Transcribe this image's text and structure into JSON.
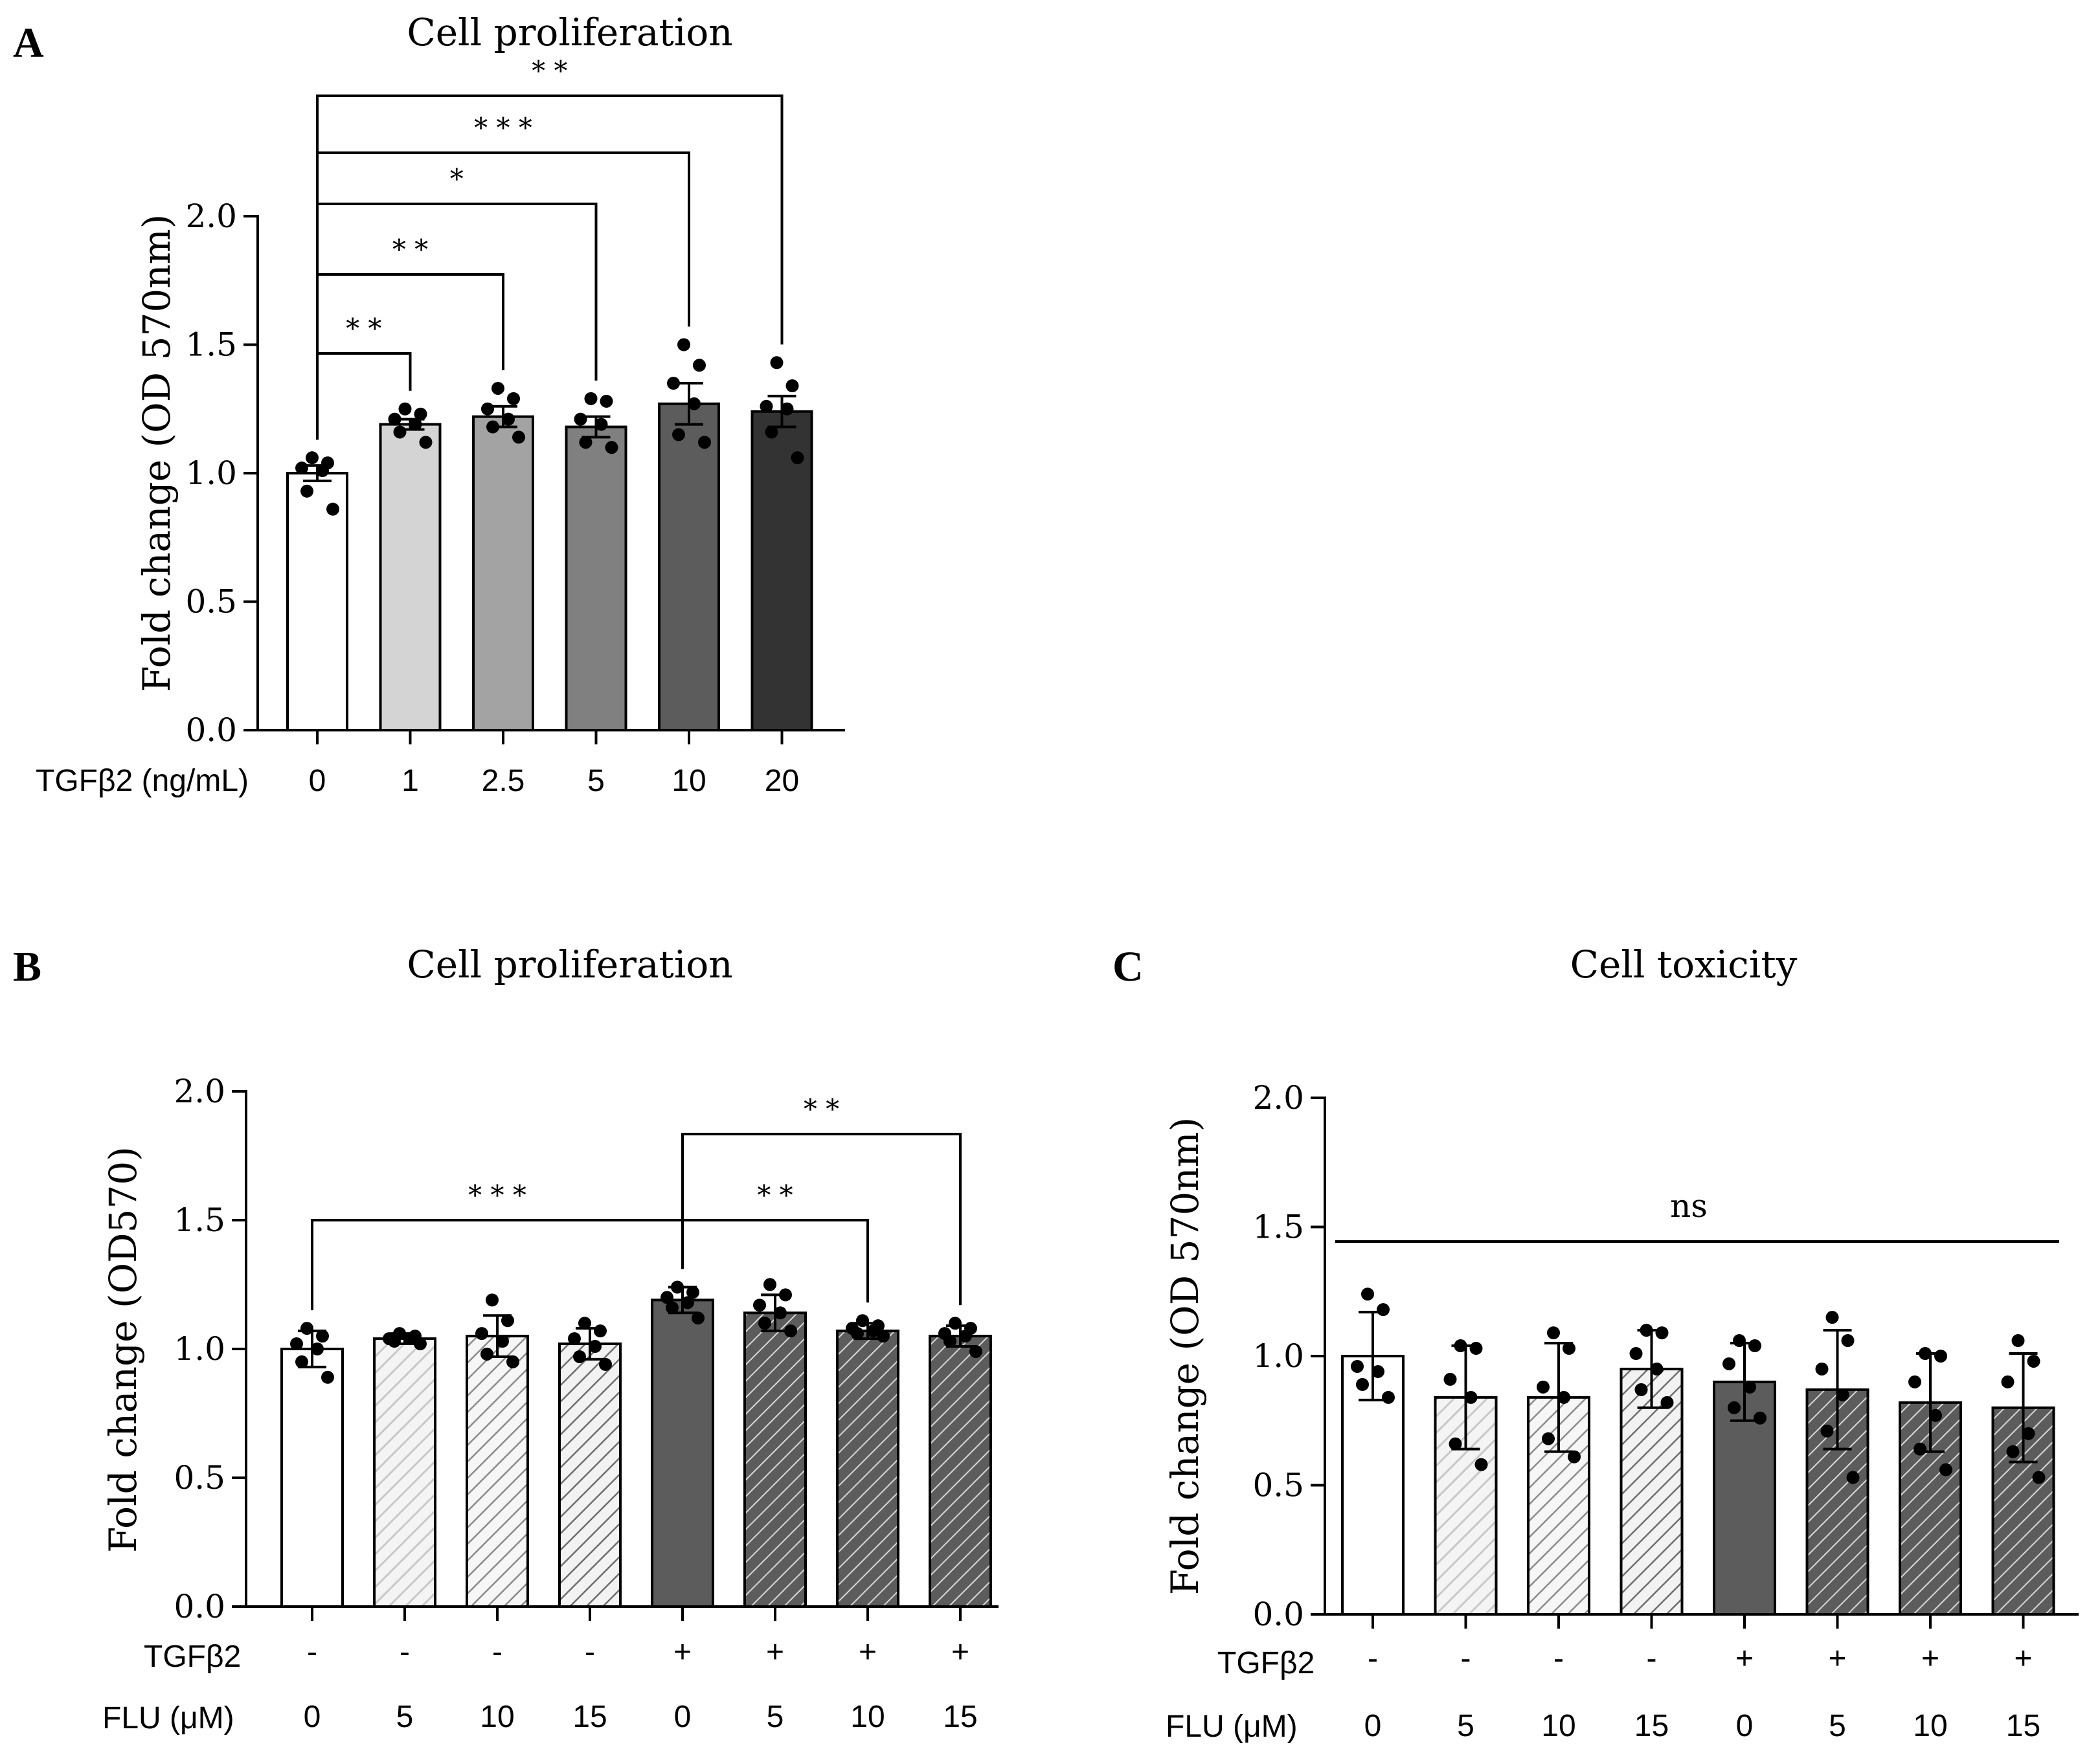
{
  "chart_data": [
    {
      "panel": "A",
      "type": "bar",
      "title": "Cell proliferation",
      "ylabel": "Fold change (OD 570nm)",
      "xlabel": "TGFβ2 (ng/mL)",
      "ylim": [
        0,
        2.0
      ],
      "yticks": [
        "0.0",
        "0.5",
        "1.0",
        "1.5",
        "2.0"
      ],
      "categories": [
        "0",
        "1",
        "2.5",
        "5",
        "10",
        "20"
      ],
      "values": [
        1.0,
        1.19,
        1.22,
        1.18,
        1.27,
        1.24
      ],
      "errors": [
        0.03,
        0.02,
        0.04,
        0.04,
        0.08,
        0.06
      ],
      "fills": [
        "#ffffff",
        "#d4d4d4",
        "#a3a3a3",
        "#808080",
        "#5c5c5c",
        "#333333"
      ],
      "points": [
        [
          1.06,
          1.04,
          1.02,
          1.01,
          0.93,
          0.86
        ],
        [
          1.25,
          1.23,
          1.21,
          1.19,
          1.16,
          1.12
        ],
        [
          1.33,
          1.29,
          1.25,
          1.21,
          1.18,
          1.14
        ],
        [
          1.29,
          1.28,
          1.21,
          1.19,
          1.12,
          1.1
        ],
        [
          1.5,
          1.42,
          1.35,
          1.27,
          1.15,
          1.12
        ],
        [
          1.43,
          1.34,
          1.26,
          1.25,
          1.16,
          1.06
        ]
      ],
      "comparisons": [
        {
          "from": 0,
          "to": 5,
          "label": "* *"
        },
        {
          "from": 0,
          "to": 4,
          "label": "* * *"
        },
        {
          "from": 0,
          "to": 3,
          "label": "*"
        },
        {
          "from": 0,
          "to": 2,
          "label": "* *"
        },
        {
          "from": 0,
          "to": 1,
          "label": "* *"
        }
      ]
    },
    {
      "panel": "B",
      "type": "bar",
      "title": "Cell proliferation",
      "ylabel": "Fold change (OD570)",
      "ylim": [
        0,
        2.0
      ],
      "yticks": [
        "0.0",
        "0.5",
        "1.0",
        "1.5",
        "2.0"
      ],
      "row_labels": [
        "TGFβ2",
        "FLU (μM)"
      ],
      "tgf": [
        "-",
        "-",
        "-",
        "-",
        "+",
        "+",
        "+",
        "+"
      ],
      "flu": [
        "0",
        "5",
        "10",
        "15",
        "0",
        "5",
        "10",
        "15"
      ],
      "values": [
        1.0,
        1.04,
        1.05,
        1.02,
        1.19,
        1.14,
        1.07,
        1.05
      ],
      "errors": [
        0.07,
        0.02,
        0.08,
        0.06,
        0.05,
        0.07,
        0.03,
        0.04
      ],
      "fills": [
        "#ffffff",
        "#f0f0f0",
        "#dadada",
        "#c8c8c8",
        "#5c5c5c",
        "#5c5c5c",
        "#5c5c5c",
        "#5c5c5c"
      ],
      "hatched": [
        false,
        true,
        true,
        true,
        false,
        true,
        true,
        true
      ],
      "hatch_colors": [
        "",
        "#c8c8c8",
        "#8a8a8a",
        "#6e6e6e",
        "",
        "#d8d8d8",
        "#d8d8d8",
        "#d8d8d8"
      ],
      "points": [
        [
          1.08,
          1.05,
          1.02,
          1.0,
          0.95,
          0.89
        ],
        [
          1.06,
          1.05,
          1.04,
          1.04,
          1.03,
          1.02
        ],
        [
          1.19,
          1.11,
          1.06,
          1.03,
          0.98,
          0.95
        ],
        [
          1.1,
          1.07,
          1.04,
          1.01,
          0.97,
          0.94
        ],
        [
          1.24,
          1.22,
          1.2,
          1.18,
          1.16,
          1.12
        ],
        [
          1.25,
          1.21,
          1.17,
          1.14,
          1.1,
          1.07
        ],
        [
          1.11,
          1.09,
          1.08,
          1.07,
          1.06,
          1.05
        ],
        [
          1.1,
          1.08,
          1.06,
          1.05,
          1.03,
          0.99
        ]
      ],
      "comparisons": [
        {
          "from": 0,
          "to": 4,
          "label": "* * *"
        },
        {
          "from": 4,
          "to": 6,
          "label": "* *"
        },
        {
          "from": 4,
          "to": 7,
          "label": "* *"
        }
      ]
    },
    {
      "panel": "C",
      "type": "bar",
      "title": "Cell toxicity",
      "ylabel": "Fold change (OD 570nm)",
      "ylim": [
        0,
        2.0
      ],
      "yticks": [
        "0.0",
        "0.5",
        "1.0",
        "1.5",
        "2.0"
      ],
      "row_labels": [
        "TGFβ2",
        "FLU (μM)"
      ],
      "tgf": [
        "-",
        "-",
        "-",
        "-",
        "+",
        "+",
        "+",
        "+"
      ],
      "flu": [
        "0",
        "5",
        "10",
        "15",
        "0",
        "5",
        "10",
        "15"
      ],
      "values": [
        1.0,
        0.84,
        0.84,
        0.95,
        0.9,
        0.87,
        0.82,
        0.8
      ],
      "errors": [
        0.17,
        0.2,
        0.21,
        0.15,
        0.15,
        0.23,
        0.19,
        0.21
      ],
      "fills": [
        "#ffffff",
        "#f0f0f0",
        "#dadada",
        "#c8c8c8",
        "#5c5c5c",
        "#5c5c5c",
        "#5c5c5c",
        "#5c5c5c"
      ],
      "hatched": [
        false,
        true,
        true,
        true,
        false,
        true,
        true,
        true
      ],
      "hatch_colors": [
        "",
        "#c8c8c8",
        "#8a8a8a",
        "#6e6e6e",
        "",
        "#d8d8d8",
        "#d8d8d8",
        "#d8d8d8"
      ],
      "points": [
        [
          1.24,
          1.18,
          0.96,
          0.94,
          0.89,
          0.84
        ],
        [
          1.04,
          1.03,
          0.91,
          0.84,
          0.66,
          0.58
        ],
        [
          1.09,
          1.03,
          0.88,
          0.84,
          0.68,
          0.61
        ],
        [
          1.1,
          1.09,
          1.01,
          0.95,
          0.87,
          0.82
        ],
        [
          1.06,
          1.04,
          0.97,
          0.88,
          0.8,
          0.76
        ],
        [
          1.15,
          1.06,
          0.95,
          0.85,
          0.71,
          0.53
        ],
        [
          1.01,
          1.0,
          0.9,
          0.77,
          0.64,
          0.56
        ],
        [
          1.06,
          0.98,
          0.9,
          0.7,
          0.63,
          0.53
        ]
      ],
      "ns_label": "ns"
    }
  ]
}
